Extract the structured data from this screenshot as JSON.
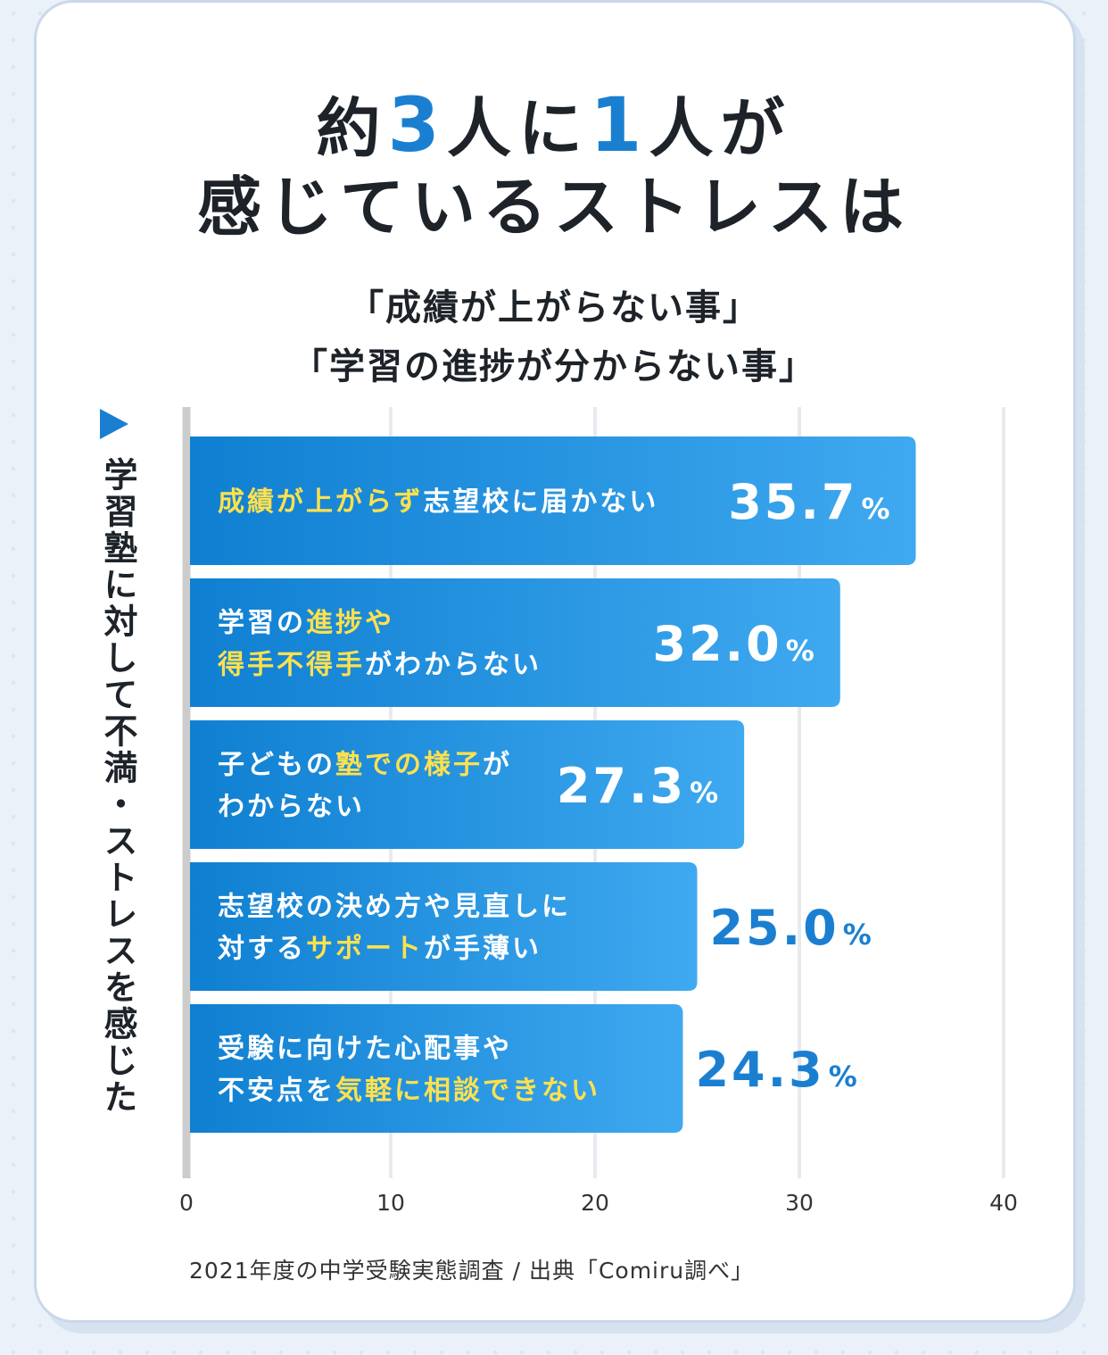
{
  "headline": {
    "line1": [
      {
        "t": "約",
        "hl": false
      },
      {
        "t": "3",
        "hl": true
      },
      {
        "t": "人に",
        "hl": false
      },
      {
        "t": "1",
        "hl": true
      },
      {
        "t": "人が",
        "hl": false
      }
    ],
    "line2": "感じているストレスは"
  },
  "subtitle": {
    "line1": "「成績が上がらない事」",
    "line2": "「学習の進捗が分からない事」"
  },
  "vertical_label": "学習塾に対して不満・ストレスを感じた",
  "footer": "2021年度の中学受験実態調査 / 出典「Comiru調べ」",
  "colors": {
    "highlight": "#ffe14d",
    "bar_start": "#0f7fd1",
    "bar_end": "#3fa9f0",
    "value_outside": "#1b7fd1",
    "grid": "#e8eaee",
    "axis": "#cccccc"
  },
  "chart_data": {
    "type": "bar",
    "orientation": "horizontal",
    "xlim": [
      0,
      40
    ],
    "x_ticks": [
      "0",
      "10",
      "20",
      "30",
      "40"
    ],
    "grid": true,
    "value_suffix": "%",
    "categories": [
      {
        "lines": [
          [
            {
              "t": "成績が上がらず",
              "hl": true
            },
            {
              "t": "志望校に届かない",
              "hl": false
            }
          ]
        ]
      },
      {
        "lines": [
          [
            {
              "t": "学習の",
              "hl": false
            },
            {
              "t": "進捗や",
              "hl": true
            }
          ],
          [
            {
              "t": "得手不得手",
              "hl": true
            },
            {
              "t": "がわからない",
              "hl": false
            }
          ]
        ]
      },
      {
        "lines": [
          [
            {
              "t": "子どもの",
              "hl": false
            },
            {
              "t": "塾での様子",
              "hl": true
            },
            {
              "t": "が",
              "hl": false
            }
          ],
          [
            {
              "t": "わからない",
              "hl": false
            }
          ]
        ]
      },
      {
        "lines": [
          [
            {
              "t": "志望校の決め方や見直しに",
              "hl": false
            }
          ],
          [
            {
              "t": "対する",
              "hl": false
            },
            {
              "t": "サポート",
              "hl": true
            },
            {
              "t": "が手薄い",
              "hl": false
            }
          ]
        ]
      },
      {
        "lines": [
          [
            {
              "t": "受験に向けた心配事や",
              "hl": false
            }
          ],
          [
            {
              "t": "不安点を",
              "hl": false
            },
            {
              "t": "気軽に相談できない",
              "hl": true
            }
          ]
        ]
      }
    ],
    "values": [
      35.7,
      32.0,
      27.3,
      25.0,
      24.3
    ],
    "value_labels": [
      "35.7",
      "32.0",
      "27.3",
      "25.0",
      "24.3"
    ]
  }
}
